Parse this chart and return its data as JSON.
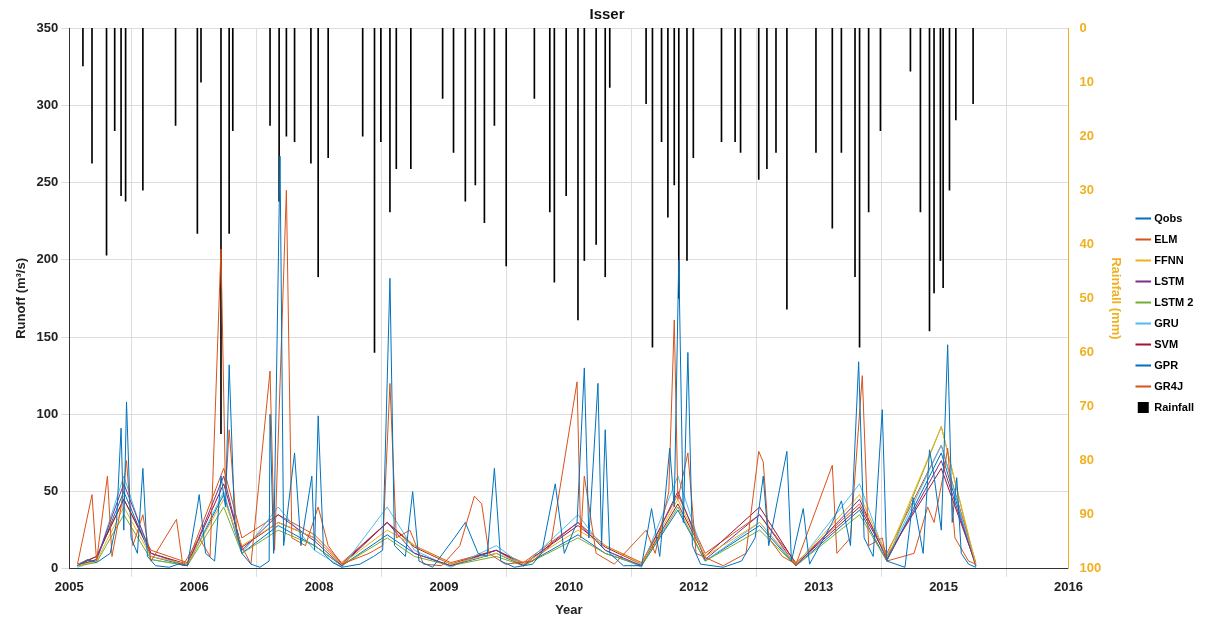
{
  "chart_data": {
    "type": "line",
    "title": "Isser",
    "xlabel": "Year",
    "ylabel": "Runoff (m³/s)",
    "y2label": "Rainfall (mm)",
    "xlim": [
      2005,
      2016
    ],
    "xticks": [
      {
        "value": 2005,
        "label": "2005"
      },
      {
        "value": 2006.375,
        "label": "2006"
      },
      {
        "value": 2007.75,
        "label": "2008"
      },
      {
        "value": 2009.125,
        "label": "2009"
      },
      {
        "value": 2010.5,
        "label": "2010"
      },
      {
        "value": 2011.875,
        "label": "2012"
      },
      {
        "value": 2013.25,
        "label": "2013"
      },
      {
        "value": 2014.625,
        "label": "2015"
      },
      {
        "value": 2016,
        "label": "2016"
      }
    ],
    "ylim": [
      0,
      350
    ],
    "yticks": [
      0,
      50,
      100,
      150,
      200,
      250,
      300,
      350
    ],
    "y2lim": [
      100,
      0
    ],
    "y2ticks": [
      0,
      10,
      20,
      30,
      40,
      50,
      60,
      70,
      80,
      90,
      100
    ],
    "grid": true,
    "legend": "right",
    "marker": "none",
    "line_style": "solid",
    "x": [
      2005.09,
      2005.3,
      2005.6,
      2005.9,
      2006.3,
      2006.7,
      2006.9,
      2007.3,
      2007.7,
      2008.0,
      2008.5,
      2008.8,
      2009.2,
      2009.7,
      2010.0,
      2010.6,
      2010.9,
      2011.3,
      2011.7,
      2012.0,
      2012.6,
      2013.0,
      2013.7,
      2014.0,
      2014.6,
      2014.98
    ],
    "series": [
      {
        "name": "Qobs",
        "color": "#0072bd",
        "x": [
          2005.09,
          2005.2,
          2005.3,
          2005.45,
          2005.52,
          2005.57,
          2005.6,
          2005.63,
          2005.68,
          2005.75,
          2005.81,
          2005.86,
          2005.95,
          2006.1,
          2006.2,
          2006.3,
          2006.41,
          2006.43,
          2006.5,
          2006.6,
          2006.67,
          2006.72,
          2006.76,
          2006.82,
          2006.9,
          2007.0,
          2007.1,
          2007.2,
          2007.21,
          2007.25,
          2007.32,
          2007.36,
          2007.48,
          2007.55,
          2007.67,
          2007.7,
          2007.74,
          2007.8,
          2007.9,
          2008.0,
          2008.2,
          2008.35,
          2008.45,
          2008.53,
          2008.58,
          2008.7,
          2008.78,
          2008.85,
          2009.0,
          2009.24,
          2009.36,
          2009.5,
          2009.6,
          2009.68,
          2009.75,
          2009.9,
          2010.1,
          2010.2,
          2010.35,
          2010.45,
          2010.59,
          2010.67,
          2010.72,
          2010.82,
          2010.86,
          2010.9,
          2010.95,
          2011.1,
          2011.3,
          2011.41,
          2011.5,
          2011.61,
          2011.66,
          2011.71,
          2011.76,
          2011.81,
          2011.86,
          2011.95,
          2012.2,
          2012.4,
          2012.55,
          2012.64,
          2012.7,
          2012.9,
          2012.95,
          2013.08,
          2013.15,
          2013.4,
          2013.5,
          2013.6,
          2013.69,
          2013.75,
          2013.85,
          2013.95,
          2014.0,
          2014.2,
          2014.29,
          2014.4,
          2014.47,
          2014.52,
          2014.6,
          2014.67,
          2014.72,
          2014.77,
          2014.82,
          2014.9,
          2014.98
        ],
        "values": [
          2,
          6,
          4,
          10,
          30,
          91,
          25,
          108,
          20,
          10,
          65,
          8,
          2,
          1,
          3,
          2,
          40,
          48,
          10,
          5,
          60,
          40,
          132,
          30,
          10,
          3,
          1,
          5,
          100,
          10,
          267,
          15,
          75,
          15,
          60,
          12,
          99,
          10,
          4,
          1,
          3,
          8,
          12,
          188,
          15,
          8,
          50,
          5,
          1,
          20,
          30,
          10,
          8,
          65,
          5,
          1,
          3,
          10,
          55,
          10,
          30,
          130,
          20,
          120,
          15,
          90,
          10,
          2,
          2,
          39,
          8,
          78,
          40,
          200,
          30,
          140,
          15,
          3,
          1,
          5,
          20,
          60,
          15,
          76,
          5,
          39,
          3,
          30,
          44,
          15,
          134,
          20,
          8,
          103,
          5,
          1,
          46,
          10,
          77,
          60,
          25,
          145,
          30,
          59,
          10,
          3,
          1
        ]
      },
      {
        "name": "ELM",
        "color": "#d95319",
        "x": [
          2005.09,
          2005.25,
          2005.3,
          2005.42,
          2005.47,
          2005.57,
          2005.63,
          2005.7,
          2005.81,
          2005.9,
          2006.18,
          2006.25,
          2006.43,
          2006.55,
          2006.67,
          2006.72,
          2006.76,
          2006.85,
          2007.0,
          2007.21,
          2007.26,
          2007.39,
          2007.45,
          2007.6,
          2007.74,
          2007.85,
          2008.0,
          2008.3,
          2008.45,
          2008.53,
          2008.6,
          2008.75,
          2008.9,
          2009.1,
          2009.3,
          2009.46,
          2009.54,
          2009.62,
          2009.8,
          2010.1,
          2010.3,
          2010.59,
          2010.63,
          2010.67,
          2010.8,
          2011.0,
          2011.35,
          2011.45,
          2011.6,
          2011.66,
          2011.7,
          2011.81,
          2011.9,
          2012.2,
          2012.45,
          2012.59,
          2012.64,
          2012.7,
          2012.85,
          2013.0,
          2013.4,
          2013.45,
          2013.6,
          2013.73,
          2013.8,
          2013.95,
          2014.0,
          2014.3,
          2014.45,
          2014.52,
          2014.62,
          2014.67,
          2014.75,
          2014.9,
          2014.98
        ],
        "values": [
          3,
          48,
          5,
          60,
          8,
          40,
          70,
          15,
          35,
          5,
          32,
          2,
          20,
          8,
          207,
          50,
          90,
          20,
          3,
          128,
          12,
          245,
          20,
          15,
          40,
          15,
          3,
          10,
          15,
          120,
          20,
          25,
          3,
          2,
          15,
          47,
          42,
          10,
          3,
          5,
          15,
          121,
          20,
          60,
          10,
          3,
          25,
          10,
          50,
          161,
          45,
          75,
          10,
          2,
          10,
          76,
          69,
          20,
          8,
          3,
          67,
          10,
          20,
          125,
          15,
          20,
          5,
          10,
          40,
          30,
          60,
          78,
          20,
          5,
          3
        ]
      },
      {
        "name": "FFNN",
        "color": "#edb120",
        "values": [
          2,
          5,
          40,
          8,
          3,
          45,
          15,
          30,
          20,
          3,
          25,
          15,
          3,
          10,
          3,
          25,
          15,
          3,
          45,
          8,
          30,
          3,
          48,
          8,
          92,
          3
        ]
      },
      {
        "name": "LSTM",
        "color": "#7e2f8e",
        "values": [
          2,
          6,
          55,
          10,
          2,
          60,
          12,
          35,
          18,
          2,
          30,
          10,
          2,
          12,
          2,
          30,
          12,
          2,
          50,
          6,
          35,
          2,
          45,
          6,
          70,
          2
        ]
      },
      {
        "name": "LSTM 2",
        "color": "#77ac30",
        "values": [
          2,
          4,
          35,
          6,
          2,
          40,
          10,
          25,
          15,
          2,
          20,
          8,
          2,
          8,
          2,
          20,
          10,
          2,
          40,
          5,
          25,
          2,
          35,
          5,
          92,
          2
        ]
      },
      {
        "name": "GRU",
        "color": "#4dbeee",
        "values": [
          1,
          5,
          60,
          6,
          2,
          50,
          10,
          40,
          12,
          1,
          40,
          12,
          1,
          15,
          2,
          35,
          12,
          1,
          60,
          5,
          30,
          2,
          55,
          6,
          80,
          1
        ]
      },
      {
        "name": "SVM",
        "color": "#a2142f",
        "values": [
          2,
          8,
          45,
          10,
          3,
          55,
          14,
          30,
          20,
          3,
          30,
          14,
          3,
          12,
          3,
          28,
          14,
          3,
          42,
          8,
          40,
          3,
          40,
          8,
          65,
          3
        ]
      },
      {
        "name": "GPR",
        "color": "#0072bd",
        "values": [
          2,
          6,
          50,
          8,
          2,
          48,
          10,
          28,
          15,
          2,
          22,
          10,
          2,
          10,
          2,
          22,
          10,
          2,
          38,
          5,
          28,
          2,
          38,
          5,
          75,
          2
        ]
      },
      {
        "name": "GR4J",
        "color": "#d95319",
        "values": [
          3,
          8,
          45,
          12,
          4,
          65,
          20,
          35,
          22,
          4,
          30,
          15,
          4,
          12,
          4,
          30,
          15,
          4,
          48,
          10,
          35,
          4,
          42,
          10,
          80,
          4
        ]
      },
      {
        "name": "Rainfall",
        "type": "bar",
        "axis": "y2",
        "color": "#000000",
        "x": [
          2005.15,
          2005.25,
          2005.41,
          2005.5,
          2005.57,
          2005.62,
          2005.81,
          2006.17,
          2006.41,
          2006.45,
          2006.67,
          2006.76,
          2006.8,
          2007.21,
          2007.31,
          2007.39,
          2007.48,
          2007.66,
          2007.74,
          2007.85,
          2008.23,
          2008.36,
          2008.43,
          2008.53,
          2008.6,
          2008.76,
          2009.11,
          2009.23,
          2009.36,
          2009.47,
          2009.57,
          2009.68,
          2009.81,
          2010.12,
          2010.29,
          2010.34,
          2010.47,
          2010.6,
          2010.67,
          2010.8,
          2010.9,
          2010.95,
          2011.35,
          2011.42,
          2011.52,
          2011.59,
          2011.66,
          2011.71,
          2011.8,
          2011.87,
          2012.18,
          2012.33,
          2012.39,
          2012.59,
          2012.68,
          2012.78,
          2012.9,
          2013.22,
          2013.4,
          2013.5,
          2013.65,
          2013.7,
          2013.8,
          2013.93,
          2014.26,
          2014.37,
          2014.47,
          2014.52,
          2014.59,
          2014.62,
          2014.69,
          2014.76,
          2014.95
        ],
        "values": [
          7,
          25,
          42,
          19,
          31,
          32,
          30,
          18,
          38,
          10,
          75,
          38,
          19,
          18,
          32,
          20,
          21,
          25,
          46,
          24,
          20,
          60,
          21,
          34,
          26,
          26,
          13,
          23,
          32,
          29,
          36,
          18,
          44,
          13,
          34,
          47,
          31,
          54,
          43,
          40,
          46,
          11,
          14,
          59,
          21,
          35,
          29,
          50,
          43,
          24,
          21,
          21,
          23,
          28,
          26,
          23,
          52,
          23,
          37,
          23,
          46,
          59,
          34,
          19,
          8,
          34,
          56,
          49,
          43,
          48,
          30,
          17,
          14
        ]
      }
    ]
  }
}
